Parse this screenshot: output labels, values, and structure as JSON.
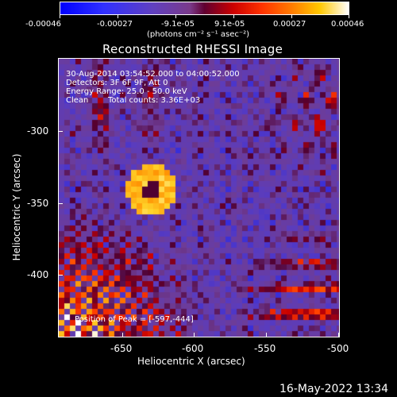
{
  "colorbar": {
    "ticks": [
      "-0.00046",
      "-0.00027",
      "-9.1e-05",
      "9.1e-05",
      "0.00027",
      "0.00046"
    ],
    "units": "(photons cm⁻² s⁻¹ asec⁻²)"
  },
  "plot": {
    "title": "Reconstructed RHESSI Image",
    "xlabel": "Heliocentric X (arcsec)",
    "ylabel": "Heliocentric Y (arcsec)",
    "xticks": [
      "-650",
      "-600",
      "-550",
      "-500"
    ],
    "yticks": [
      "-300",
      "-350",
      "-400"
    ],
    "annotations": {
      "time_range": "30-Aug-2014 03:54:52.000 to 04:00:52.000",
      "detectors": "Detectors: 3F 6F 9F, Att 0",
      "energy_range": "Energy Range: 25.0 - 50.0 keV",
      "algorithm": "Clean",
      "total_counts": "Total counts: 3.36E+03",
      "peak_position": "Position of Peak = [-597,-444]"
    }
  },
  "footer": {
    "date": "16-May-2022 13:34"
  },
  "colors": {
    "background": "#000000",
    "foreground": "#ffffff"
  }
}
